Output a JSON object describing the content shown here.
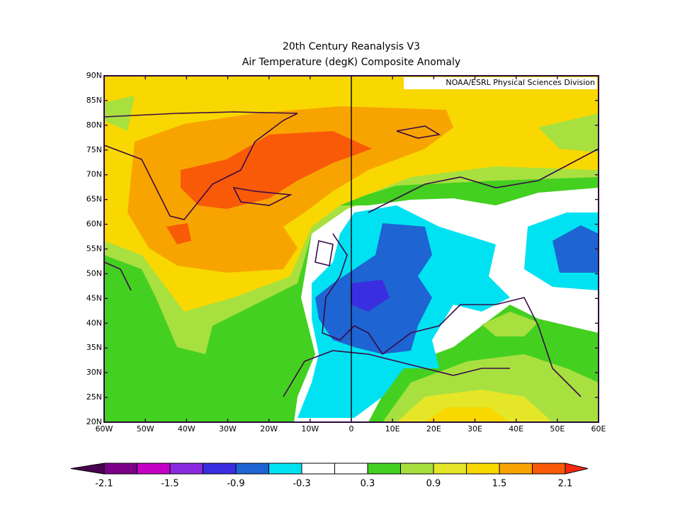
{
  "map": {
    "title": [
      "20th Century Reanalysis V3",
      "Air Temperature (degK) Composite Anomaly"
    ],
    "credit": "NOAA/ESRL Physical Sciences Division",
    "lonlim": [
      -60,
      60
    ],
    "latlim": [
      20,
      90
    ],
    "lon_ticks": [
      {
        "value": -60,
        "label": "60W"
      },
      {
        "value": -50,
        "label": "50W"
      },
      {
        "value": -40,
        "label": "40W"
      },
      {
        "value": -30,
        "label": "30W"
      },
      {
        "value": -20,
        "label": "20W"
      },
      {
        "value": -10,
        "label": "10W"
      },
      0,
      {
        "value": 10,
        "label": "10E"
      },
      {
        "value": 20,
        "label": "20E"
      },
      {
        "value": 30,
        "label": "30E"
      },
      {
        "value": 40,
        "label": "40E"
      },
      {
        "value": 50,
        "label": "50E"
      },
      {
        "value": 60,
        "label": "60E"
      }
    ],
    "lat_ticks": [
      {
        "value": 20,
        "label": "20N"
      },
      {
        "value": 25,
        "label": "25N"
      },
      {
        "value": 30,
        "label": "30N"
      },
      {
        "value": 35,
        "label": "35N"
      },
      {
        "value": 40,
        "label": "40N"
      },
      {
        "value": 45,
        "label": "45N"
      },
      {
        "value": 50,
        "label": "50N"
      },
      {
        "value": 55,
        "label": "55N"
      },
      {
        "value": 60,
        "label": "60N"
      },
      {
        "value": 65,
        "label": "65N"
      },
      {
        "value": 70,
        "label": "70N"
      },
      {
        "value": 75,
        "label": "75N"
      },
      {
        "value": 80,
        "label": "80N"
      },
      {
        "value": 85,
        "label": "85N"
      },
      {
        "value": 90,
        "label": "90N"
      }
    ],
    "colorbar": {
      "labels": [
        -2.1,
        -1.5,
        -0.9,
        -0.3,
        0.3,
        0.9,
        1.5,
        2.1
      ],
      "under_color": "#4a0052",
      "colors": [
        "#7a0088",
        "#c400c4",
        "#8a2ae0",
        "#3a2ee0",
        "#1e64d2",
        "#00e2f2",
        "#ffffff",
        "#ffffff",
        "#44d020",
        "#a8e040",
        "#e6e628",
        "#f8d800",
        "#f8a400",
        "#f85a08"
      ],
      "over_color": "#f82a10"
    }
  }
}
